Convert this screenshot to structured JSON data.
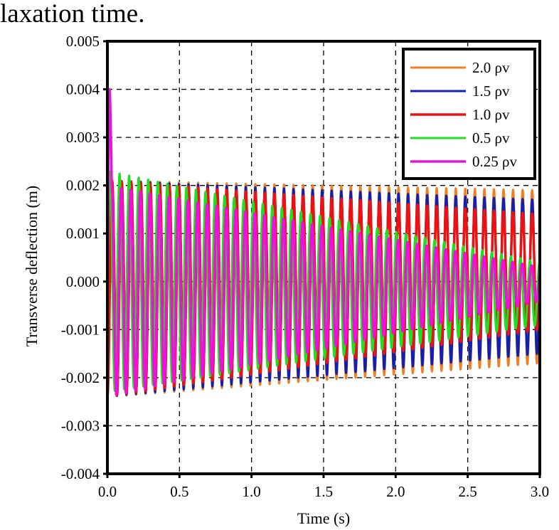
{
  "caption": "laxation time.",
  "chart_data": {
    "type": "line",
    "title": "",
    "xlabel": "Time (s)",
    "ylabel": "Transverse deflection (m)",
    "xlim": [
      0.0,
      3.0
    ],
    "ylim": [
      -0.004,
      0.005
    ],
    "x_ticks": [
      0.0,
      0.5,
      1.0,
      1.5,
      2.0,
      2.5,
      3.0
    ],
    "x_tick_labels": [
      "0.0",
      "0.5",
      "1.0",
      "1.5",
      "2.0",
      "2.5",
      "3.0"
    ],
    "y_ticks": [
      0.005,
      0.004,
      0.003,
      0.002,
      0.001,
      0.0,
      -0.001,
      -0.002,
      -0.003,
      -0.004
    ],
    "y_tick_labels": [
      "0.005",
      "0.004",
      "0.003",
      "0.002",
      "0.001",
      "0.000",
      "-0.001",
      "-0.002",
      "-0.003",
      "-0.004"
    ],
    "grid": true,
    "legend_position": "top-right",
    "oscillation_frequency_hz": 15.1,
    "series": [
      {
        "name": "2.0 ρv",
        "color": "#f07f24",
        "stroke": 3,
        "upper_envelope": [
          0.0021,
          0.0019
        ],
        "lower_envelope": [
          -0.0024,
          -0.0017
        ],
        "phase": 0.0
      },
      {
        "name": "1.5 ρv",
        "color": "#1020b0",
        "stroke": 3,
        "upper_envelope": [
          0.0021,
          0.0017
        ],
        "lower_envelope": [
          -0.0024,
          -0.0015
        ],
        "phase": 0.0
      },
      {
        "name": "1.0 ρv",
        "color": "#ee1111",
        "stroke": 3.5,
        "upper_envelope": [
          0.0021,
          0.0014
        ],
        "lower_envelope": [
          -0.0024,
          -0.001
        ],
        "phase": 0.0
      },
      {
        "name": "0.5 ρv",
        "color": "#22dd22",
        "stroke": 3,
        "upper_envelope": [
          0.0023,
          0.0004
        ],
        "lower_envelope": [
          -0.0023,
          -0.0009
        ],
        "phase": 1.4
      },
      {
        "name": "0.25 ρv",
        "color": "#ee11dd",
        "stroke": 3.5,
        "upper_envelope": [
          0.002,
          0.0003
        ],
        "lower_envelope": [
          -0.0024,
          -0.0004
        ],
        "phase": 0.35,
        "initial_peak": 0.004
      }
    ]
  }
}
